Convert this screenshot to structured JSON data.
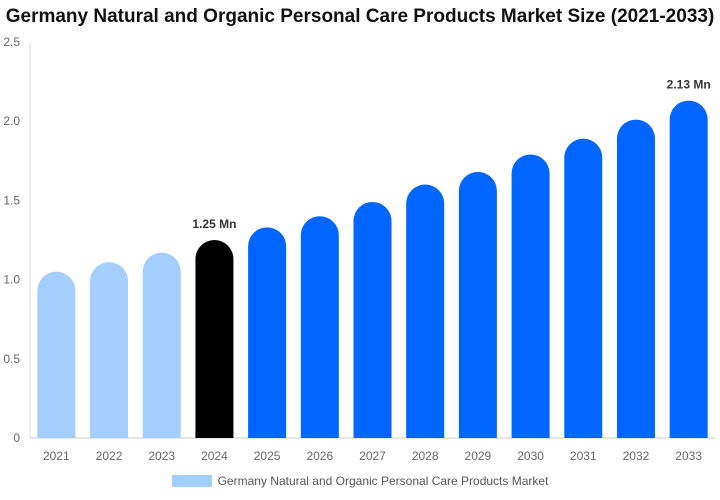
{
  "chart_data": {
    "type": "bar",
    "title": "Germany Natural and Organic Personal Care Products Market Size (2021-2033)",
    "categories": [
      "2021",
      "2022",
      "2023",
      "2024",
      "2025",
      "2026",
      "2027",
      "2028",
      "2029",
      "2030",
      "2031",
      "2032",
      "2033"
    ],
    "series": [
      {
        "name": "Germany Natural and Organic Personal Care Products Market",
        "values": [
          1.05,
          1.11,
          1.17,
          1.25,
          1.33,
          1.4,
          1.49,
          1.6,
          1.68,
          1.79,
          1.89,
          2.01,
          2.13
        ]
      }
    ],
    "data_labels": {
      "2024": "1.25 Mn",
      "2033": "2.13 Mn"
    },
    "ylim": [
      0,
      2.5
    ],
    "yticks": [
      "0",
      "0.5",
      "1.0",
      "1.5",
      "2.0",
      "2.5"
    ],
    "xlabel": "",
    "ylabel": "",
    "grid": false,
    "legend": "bottom",
    "colors": {
      "historical": "#a4cefd",
      "current": "#000000",
      "forecast": "#0066ff"
    }
  }
}
